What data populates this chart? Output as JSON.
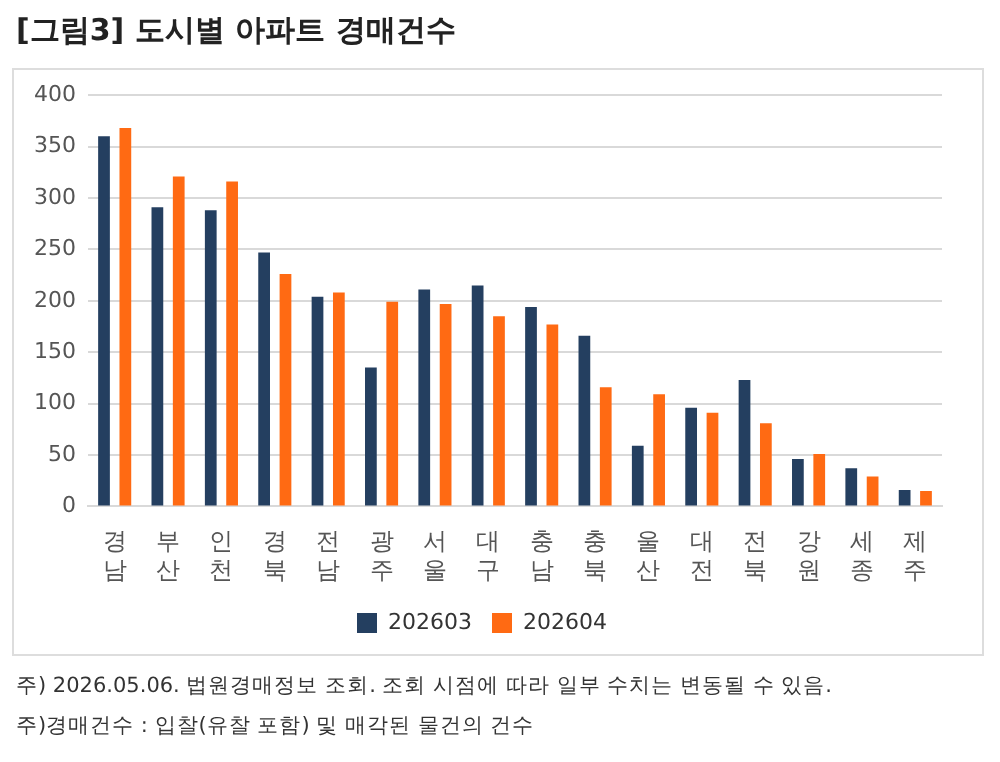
{
  "chart_data": {
    "type": "bar",
    "title": "[그림3] 도시별 아파트 경매건수",
    "categories": [
      "경남",
      "부산",
      "인천",
      "경북",
      "전남",
      "광주",
      "서울",
      "대구",
      "충남",
      "충북",
      "울산",
      "대전",
      "전북",
      "강원",
      "세종",
      "제주"
    ],
    "series": [
      {
        "name": "202603",
        "color": "#243f60",
        "values": [
          360,
          291,
          288,
          247,
          204,
          135,
          211,
          215,
          194,
          166,
          59,
          96,
          123,
          46,
          37,
          16
        ]
      },
      {
        "name": "202604",
        "color": "#ff6a13",
        "values": [
          368,
          321,
          316,
          226,
          208,
          199,
          197,
          185,
          177,
          116,
          109,
          91,
          81,
          51,
          29,
          15
        ]
      }
    ],
    "ylim": [
      0,
      400
    ],
    "yticks": [
      0,
      50,
      100,
      150,
      200,
      250,
      300,
      350,
      400
    ],
    "grid": "y",
    "legend": "bottom",
    "annotations": [
      "주) 2026.05.06. 법원경매정보 조회. 조회 시점에 따라 일부 수치는 변동될 수 있음.",
      "주)경매건수 : 입찰(유찰 포함) 및 매각된 물건의 건수"
    ]
  }
}
